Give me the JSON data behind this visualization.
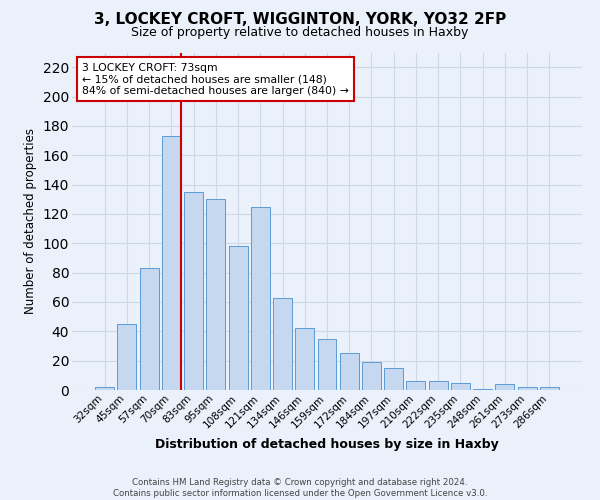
{
  "title": "3, LOCKEY CROFT, WIGGINTON, YORK, YO32 2FP",
  "subtitle": "Size of property relative to detached houses in Haxby",
  "xlabel": "Distribution of detached houses by size in Haxby",
  "ylabel": "Number of detached properties",
  "footer_line1": "Contains HM Land Registry data © Crown copyright and database right 2024.",
  "footer_line2": "Contains public sector information licensed under the Open Government Licence v3.0.",
  "categories": [
    "32sqm",
    "45sqm",
    "57sqm",
    "70sqm",
    "83sqm",
    "95sqm",
    "108sqm",
    "121sqm",
    "134sqm",
    "146sqm",
    "159sqm",
    "172sqm",
    "184sqm",
    "197sqm",
    "210sqm",
    "222sqm",
    "235sqm",
    "248sqm",
    "261sqm",
    "273sqm",
    "286sqm"
  ],
  "values": [
    2,
    45,
    83,
    173,
    135,
    130,
    98,
    125,
    63,
    42,
    35,
    25,
    19,
    15,
    6,
    6,
    5,
    1,
    4,
    2,
    2
  ],
  "bar_color": "#c5d8f0",
  "bar_edge_color": "#5b9bd5",
  "grid_color": "#d0d8e8",
  "background_color": "#eaf1fb",
  "vline_index": 3,
  "vline_color": "#cc0000",
  "annotation_text": "3 LOCKEY CROFT: 73sqm\n← 15% of detached houses are smaller (148)\n84% of semi-detached houses are larger (840) →",
  "annotation_box_color": "#ffffff",
  "annotation_box_edge": "#cc0000",
  "ylim": [
    0,
    230
  ],
  "yticks": [
    0,
    20,
    40,
    60,
    80,
    100,
    120,
    140,
    160,
    180,
    200,
    220
  ]
}
